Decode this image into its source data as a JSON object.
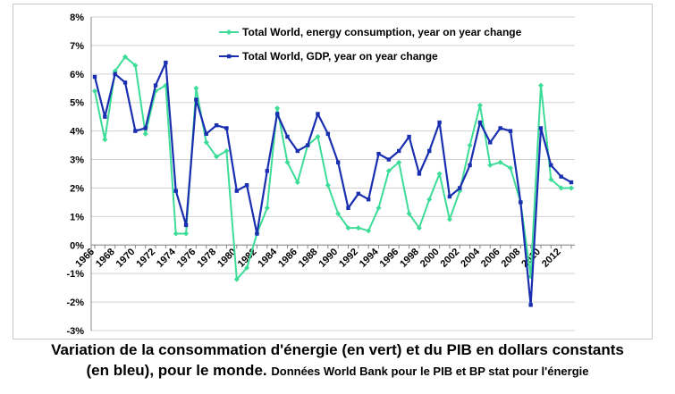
{
  "chart_data": {
    "type": "line",
    "x": [
      1966,
      1967,
      1968,
      1969,
      1970,
      1971,
      1972,
      1973,
      1974,
      1975,
      1976,
      1977,
      1978,
      1979,
      1980,
      1981,
      1982,
      1983,
      1984,
      1985,
      1986,
      1987,
      1988,
      1989,
      1990,
      1991,
      1992,
      1993,
      1994,
      1995,
      1996,
      1997,
      1998,
      1999,
      2000,
      2001,
      2002,
      2003,
      2004,
      2005,
      2006,
      2007,
      2008,
      2009,
      2010,
      2011,
      2012,
      2013
    ],
    "x_tick_labels": [
      "1966",
      "1968",
      "1970",
      "1972",
      "1974",
      "1976",
      "1978",
      "1980",
      "1982",
      "1984",
      "1986",
      "1988",
      "1990",
      "1992",
      "1994",
      "1996",
      "1998",
      "2000",
      "2002",
      "2004",
      "2006",
      "2008",
      "2010",
      "2012"
    ],
    "y_tick_labels": [
      "8%",
      "7%",
      "6%",
      "5%",
      "4%",
      "3%",
      "2%",
      "1%",
      "0%",
      "-1%",
      "-2%",
      "-3%"
    ],
    "ylim": [
      -3,
      8
    ],
    "grid": true,
    "legend_position": "top-center",
    "series": [
      {
        "name": "Total World, energy consumption, year on year change",
        "color": "#3ddc97",
        "values": [
          5.4,
          3.7,
          6.1,
          6.6,
          6.3,
          3.9,
          5.4,
          5.6,
          0.4,
          0.4,
          5.5,
          3.6,
          3.1,
          3.3,
          -1.2,
          -0.8,
          0.4,
          1.3,
          4.8,
          2.9,
          2.2,
          3.5,
          3.8,
          2.1,
          1.1,
          0.6,
          0.6,
          0.5,
          1.3,
          2.6,
          2.9,
          1.1,
          0.6,
          1.6,
          2.5,
          0.9,
          1.9,
          3.5,
          4.9,
          2.8,
          2.9,
          2.7,
          1.5,
          -1.1,
          5.6,
          2.3,
          2.0,
          2.0
        ]
      },
      {
        "name": "Total World, GDP, year on year change",
        "color": "#1a2fb0",
        "values": [
          5.9,
          4.5,
          6.0,
          5.7,
          4.0,
          4.1,
          5.6,
          6.4,
          1.9,
          0.7,
          5.1,
          3.9,
          4.2,
          4.1,
          1.9,
          2.1,
          0.4,
          2.6,
          4.6,
          3.8,
          3.3,
          3.5,
          4.6,
          3.9,
          2.9,
          1.3,
          1.8,
          1.6,
          3.2,
          3.0,
          3.3,
          3.8,
          2.5,
          3.3,
          4.3,
          1.7,
          2.0,
          2.8,
          4.3,
          3.6,
          4.1,
          4.0,
          1.5,
          -2.1,
          4.1,
          2.8,
          2.4,
          2.2
        ]
      }
    ]
  },
  "caption": {
    "line1": "Variation de la consommation d'énergie (en vert) et du PIB en dollars constants",
    "line2_bold": "(en bleu), pour le monde.",
    "line2_small": "Données World Bank pour le PIB et BP stat pour l'énergie"
  }
}
